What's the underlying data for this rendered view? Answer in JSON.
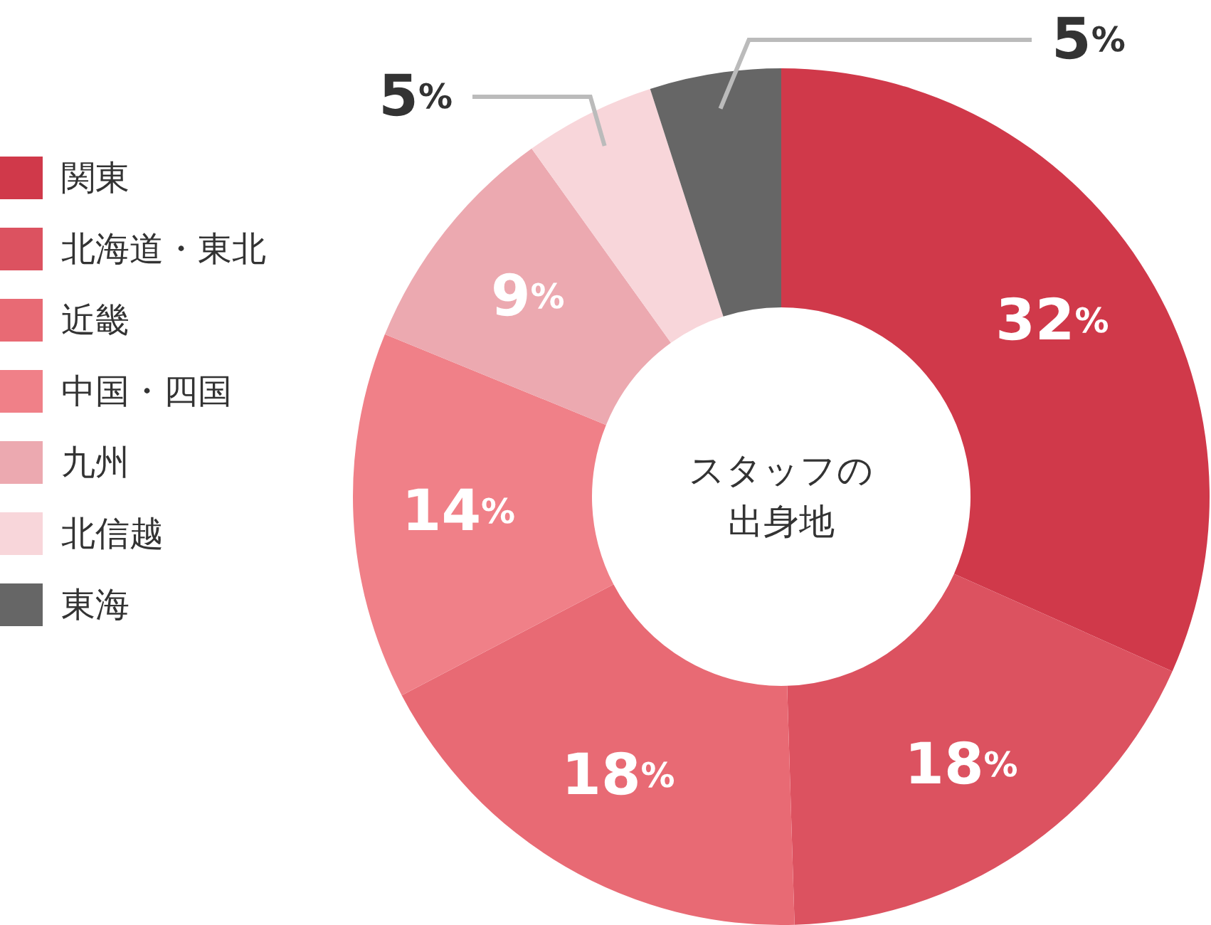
{
  "chart_data": {
    "type": "donut",
    "title": "スタッフの出身地",
    "categories": [
      "関東",
      "北海道・東北",
      "近畿",
      "中国・四国",
      "九州",
      "北信越",
      "東海"
    ],
    "values": [
      32,
      18,
      18,
      14,
      9,
      5,
      5
    ],
    "colors": [
      "#d0394a",
      "#dc5260",
      "#e86a74",
      "#f08088",
      "#eca9b0",
      "#f8d6da",
      "#666666"
    ],
    "value_labels": [
      "32%",
      "18%",
      "18%",
      "14%",
      "9%",
      "5%",
      "5%"
    ],
    "legend": "left"
  }
}
